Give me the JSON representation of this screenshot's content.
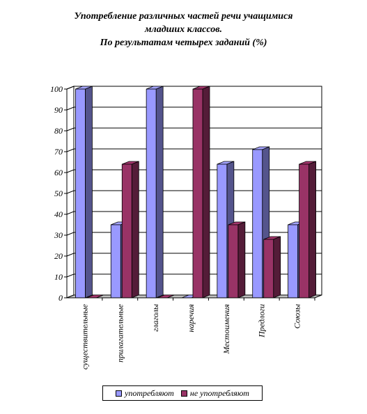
{
  "chart_data": {
    "type": "bar",
    "title_lines": [
      "Употребление различных частей речи учащимися",
      "младших классов.",
      "По результатам четырех заданий (%)"
    ],
    "categories": [
      "существительные",
      "прилагательные",
      "глаголы",
      "наречия",
      "Местоимения",
      "Предлоги",
      "Союзы"
    ],
    "series": [
      {
        "name": "употребляют",
        "values": [
          100,
          35,
          100,
          0,
          64,
          71,
          35
        ],
        "color": "#9999ff"
      },
      {
        "name": "не употребляют",
        "values": [
          0,
          64,
          0,
          100,
          35,
          28,
          64
        ],
        "color": "#993366"
      }
    ],
    "ylim": [
      0,
      100
    ],
    "yticks": [
      "0",
      "10",
      "20",
      "30",
      "40",
      "50",
      "60",
      "70",
      "80",
      "90",
      "100"
    ],
    "grid": true,
    "legend_position": "bottom",
    "style": "3d"
  }
}
